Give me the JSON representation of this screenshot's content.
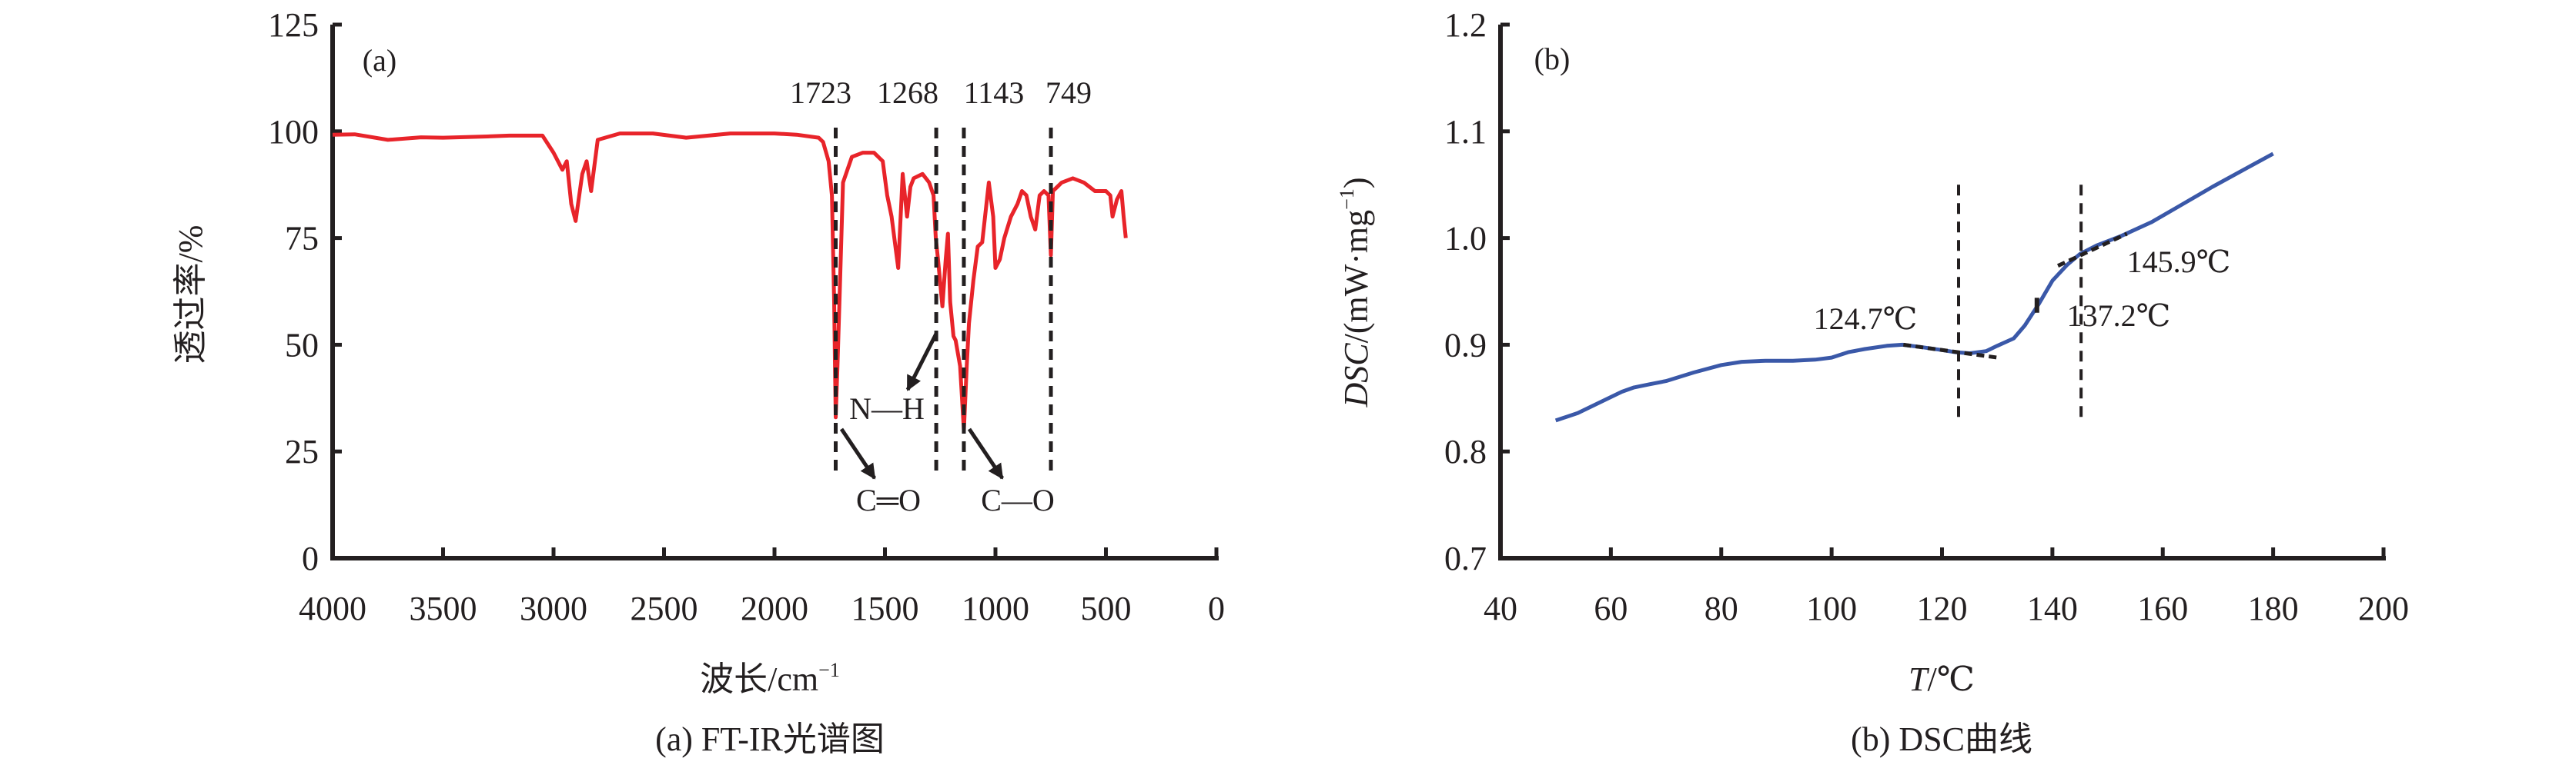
{
  "chart_data": [
    {
      "type": "line",
      "panel_label": "(a)",
      "title": "(a) FT-IR光谱图",
      "xlabel": "波长/cm",
      "xlabel_sup": "−1",
      "ylabel": "透过率/%",
      "xlim": [
        4000,
        0
      ],
      "ylim": [
        0,
        125
      ],
      "xticks": [
        4000,
        3500,
        3000,
        2500,
        2000,
        1500,
        1000,
        500,
        0
      ],
      "yticks": [
        0,
        25,
        50,
        75,
        100,
        125
      ],
      "grid": false,
      "series": [
        {
          "name": "FT-IR",
          "color": "#e8242a",
          "x": [
            4000,
            3900,
            3750,
            3600,
            3500,
            3300,
            3200,
            3050,
            3000,
            2960,
            2940,
            2920,
            2900,
            2870,
            2850,
            2830,
            2800,
            2700,
            2550,
            2400,
            2200,
            2000,
            1900,
            1800,
            1780,
            1755,
            1740,
            1730,
            1723,
            1715,
            1705,
            1690,
            1650,
            1600,
            1550,
            1510,
            1490,
            1470,
            1450,
            1440,
            1420,
            1400,
            1385,
            1370,
            1330,
            1300,
            1280,
            1270,
            1260,
            1240,
            1225,
            1215,
            1205,
            1190,
            1180,
            1160,
            1143,
            1130,
            1120,
            1100,
            1080,
            1060,
            1030,
            1010,
            1000,
            980,
            960,
            930,
            900,
            880,
            860,
            840,
            820,
            800,
            780,
            760,
            749,
            740,
            720,
            700,
            650,
            600,
            550,
            500,
            480,
            470,
            450,
            430,
            420,
            410
          ],
          "y": [
            99.2,
            99.3,
            98,
            98.6,
            98.5,
            98.8,
            99,
            99,
            95,
            91,
            93,
            83,
            79,
            90,
            93,
            86,
            98,
            99.5,
            99.5,
            98.5,
            99.5,
            99.5,
            99.2,
            98.5,
            97.5,
            93,
            85,
            60,
            33,
            45,
            62,
            88,
            94,
            95,
            95,
            93,
            85,
            80,
            72,
            68,
            90,
            80,
            87,
            89,
            90,
            88,
            85,
            75,
            70,
            59,
            70,
            76,
            60,
            52,
            51,
            45,
            30,
            45,
            55,
            65,
            73,
            74,
            88,
            80,
            68,
            70,
            75,
            80,
            83,
            86,
            85,
            80,
            77,
            85,
            86,
            85,
            71,
            86,
            87,
            88,
            89,
            88,
            86,
            86,
            85,
            80,
            84,
            86,
            80,
            75
          ]
        }
      ],
      "annotations": {
        "peaks": [
          "1723",
          "1268",
          "1143",
          "749"
        ],
        "peak_positions": [
          1723,
          1268,
          1143,
          749
        ],
        "nh": "N—H",
        "co_double": "C═O",
        "co_single": "C—O"
      }
    },
    {
      "type": "line",
      "panel_label": "(b)",
      "title": "(b) DSC曲线",
      "xlabel": "T/℃",
      "xlabel_var": "T",
      "xlabel_unit": "/℃",
      "ylabel_var": "DSC",
      "ylabel_unit": "/(mW·mg",
      "ylabel_sup": "−1",
      "ylabel_close": ")",
      "xlim": [
        40,
        200
      ],
      "ylim": [
        0.7,
        1.2
      ],
      "xticks": [
        "40",
        "60",
        "80",
        "100",
        "120",
        "140",
        "160",
        "180",
        "200"
      ],
      "yticks": [
        "0.7",
        "0.8",
        "0.9",
        "1.0",
        "1.1",
        "1.2"
      ],
      "grid": false,
      "series": [
        {
          "name": "DSC",
          "color": "#3a58a8",
          "x": [
            50,
            54,
            58,
            62,
            64.2,
            67,
            70,
            75,
            80,
            83.7,
            88,
            93,
            97,
            100,
            103,
            106,
            110,
            112.8,
            116,
            120,
            122.5,
            125,
            128,
            130,
            133,
            135,
            137.5,
            140,
            142.7,
            145,
            148,
            152.5,
            158,
            163,
            169,
            175,
            180
          ],
          "y": [
            0.829,
            0.836,
            0.846,
            0.856,
            0.86,
            0.863,
            0.866,
            0.874,
            0.881,
            0.884,
            0.885,
            0.885,
            0.886,
            0.888,
            0.893,
            0.896,
            0.899,
            0.9,
            0.898,
            0.895,
            0.893,
            0.892,
            0.894,
            0.899,
            0.906,
            0.918,
            0.938,
            0.96,
            0.975,
            0.985,
            0.993,
            1.002,
            1.015,
            1.03,
            1.048,
            1.065,
            1.079
          ]
        }
      ],
      "annotations": {
        "onset": "124.7℃",
        "midpoint": "137.2℃",
        "endset": "145.9℃",
        "vlines": [
          123,
          145.2
        ]
      }
    }
  ]
}
